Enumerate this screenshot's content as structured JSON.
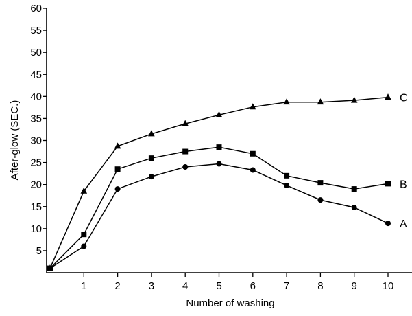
{
  "chart_data": {
    "type": "line",
    "title": "",
    "xlabel": "Number of washing",
    "ylabel": "After-glow (SEC.)",
    "x": [
      0,
      1,
      2,
      3,
      4,
      5,
      6,
      7,
      8,
      9,
      10
    ],
    "xticks": [
      1,
      2,
      3,
      4,
      5,
      6,
      7,
      8,
      9,
      10
    ],
    "yticks": [
      5,
      10,
      15,
      20,
      25,
      30,
      35,
      40,
      45,
      50,
      55,
      60
    ],
    "xlim": [
      0,
      11.2
    ],
    "ylim": [
      0,
      60
    ],
    "grid": false,
    "series": [
      {
        "name": "A",
        "marker": "circle",
        "values": [
          1,
          6,
          19,
          21.8,
          24,
          24.7,
          23.3,
          19.8,
          16.5,
          14.8,
          11.2
        ]
      },
      {
        "name": "B",
        "marker": "square",
        "values": [
          1,
          8.7,
          23.5,
          26,
          27.5,
          28.5,
          27,
          22,
          20.4,
          19,
          20.2
        ]
      },
      {
        "name": "C",
        "marker": "triangle",
        "values": [
          1,
          18.5,
          28.7,
          31.5,
          33.8,
          35.8,
          37.6,
          38.7,
          38.7,
          39.1,
          39.8
        ]
      }
    ]
  }
}
